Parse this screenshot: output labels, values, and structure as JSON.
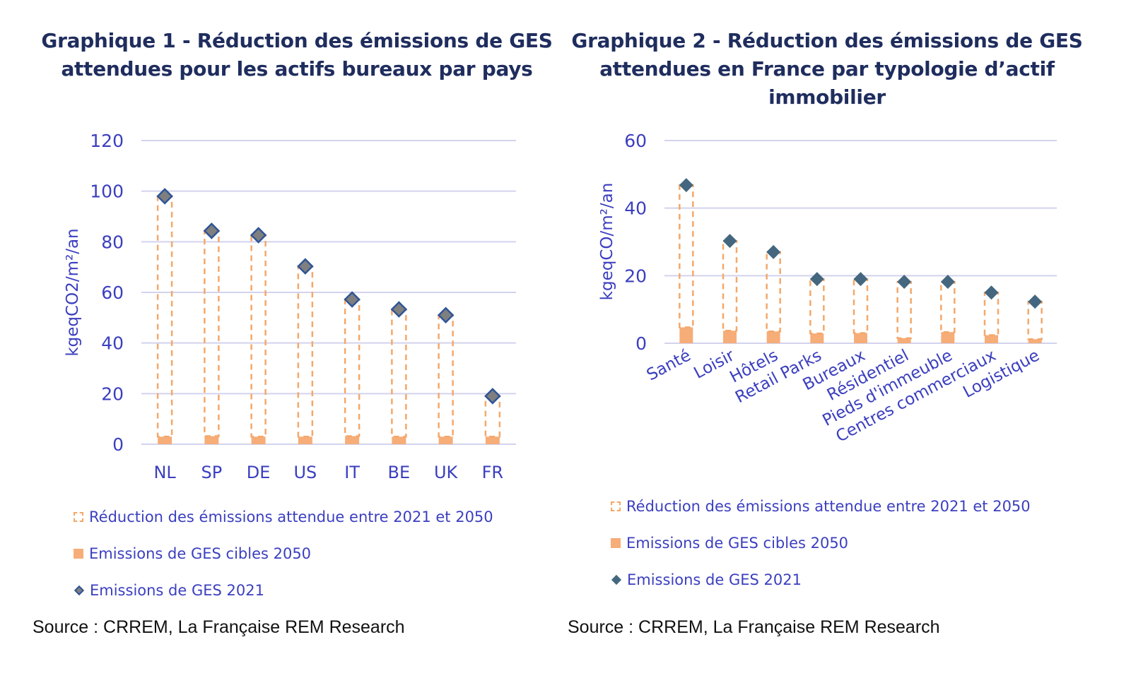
{
  "colors": {
    "axis_text": "#3b3fbf",
    "grid": "#d3d3ee",
    "reduction": "#f4a86a",
    "target": "#f6ad78",
    "ges2021_c1_fill": "#7f7f7f",
    "ges2021_c1_stroke": "#2f5597",
    "ges2021_c2_fill": "#44677f"
  },
  "chart_data": [
    {
      "type": "bar",
      "title": "Graphique 1 - Réduction des émissions de GES attendues pour les actifs bureaux par pays",
      "title_lines": [
        "Graphique 1 - Réduction des émissions de GES",
        "attendues pour les actifs bureaux par pays"
      ],
      "ylabel": "kgeqCO2/m²/an",
      "xlabel": "",
      "ylim": [
        0,
        120
      ],
      "yticks": [
        0,
        20,
        40,
        60,
        80,
        100,
        120
      ],
      "grid": true,
      "legend": "bottom",
      "categories": [
        "NL",
        "SP",
        "DE",
        "US",
        "IT",
        "BE",
        "UK",
        "FR"
      ],
      "series": [
        {
          "name": "Emissions de GES cibles 2050",
          "kind": "bar",
          "values": [
            3,
            3.2,
            3,
            3,
            3.2,
            3,
            3,
            3
          ]
        },
        {
          "name": "Réduction des émissions attendue entre 2021 et 2050",
          "kind": "stacked-dashed",
          "values": [
            95,
            81.1,
            79.6,
            67.3,
            54,
            50.3,
            48,
            16
          ]
        },
        {
          "name": "Emissions de GES 2021",
          "kind": "marker",
          "values": [
            98,
            84.3,
            82.6,
            70.3,
            57.2,
            53.3,
            51,
            19
          ]
        }
      ],
      "legend_entries": [
        "Réduction des émissions attendue entre 2021 et 2050",
        "Emissions de GES cibles 2050",
        "Emissions de GES 2021"
      ],
      "source": "Source : CRREM, La Française REM Research"
    },
    {
      "type": "bar",
      "title": "Graphique 2 - Réduction des émissions de GES attendues en France par typologie d’actif immobilier",
      "title_lines": [
        "Graphique 2 - Réduction des émissions de GES",
        "attendues en France par typologie d’actif",
        "immobilier"
      ],
      "ylabel": "kgeqCO/m²/an",
      "xlabel": "",
      "ylim": [
        0,
        60
      ],
      "yticks": [
        0,
        20,
        40,
        60
      ],
      "grid": true,
      "legend": "bottom",
      "categories": [
        "Santé",
        "Loisir",
        "Hôtels",
        "Retail Parks",
        "Bureaux",
        "Résidentiel",
        "Pieds d'immeuble",
        "Centres commerciaux",
        "Logistique"
      ],
      "series": [
        {
          "name": "Emissions de GES cibles 2050",
          "kind": "bar",
          "values": [
            4.7,
            3.7,
            3.5,
            2.9,
            3,
            1.5,
            3.3,
            2.4,
            1.2
          ]
        },
        {
          "name": "Réduction des émissions attendue entre 2021 et 2050",
          "kind": "stacked-dashed",
          "values": [
            42.1,
            26.6,
            23.5,
            16.1,
            16,
            16.7,
            14.9,
            12.6,
            11.1
          ]
        },
        {
          "name": "Emissions de GES 2021",
          "kind": "marker",
          "values": [
            46.8,
            30.3,
            27,
            19,
            19,
            18.2,
            18.2,
            15,
            12.3
          ]
        }
      ],
      "legend_entries": [
        "Réduction des émissions attendue entre 2021 et 2050",
        "Emissions de GES cibles 2050",
        "Emissions de GES 2021"
      ],
      "source": "Source : CRREM, La Française REM Research"
    }
  ]
}
